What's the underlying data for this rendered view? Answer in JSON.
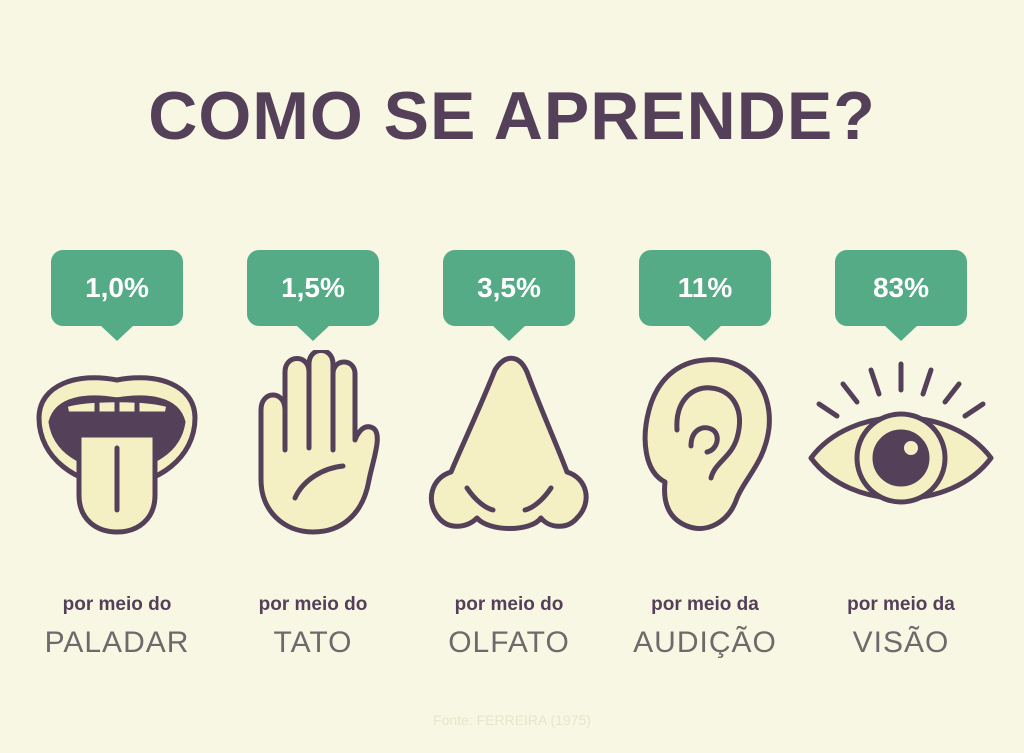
{
  "title": "COMO SE APRENDE?",
  "colors": {
    "background": "#f8f7e4",
    "title": "#55405a",
    "bubble": "#55ab86",
    "icon_fill": "#f5efc4",
    "icon_stroke": "#55405a"
  },
  "senses": [
    {
      "percent": "1,0%",
      "prefix": "por meio do",
      "name": "PALADAR",
      "icon": "mouth-icon"
    },
    {
      "percent": "1,5%",
      "prefix": "por meio do",
      "name": "TATO",
      "icon": "hand-icon"
    },
    {
      "percent": "3,5%",
      "prefix": "por meio do",
      "name": "OLFATO",
      "icon": "nose-icon"
    },
    {
      "percent": "11%",
      "prefix": "por meio da",
      "name": "AUDIÇÃO",
      "icon": "ear-icon"
    },
    {
      "percent": "83%",
      "prefix": "por meio da",
      "name": "VISÃO",
      "icon": "eye-icon"
    }
  ],
  "source": "Fonte: FERREIRA (1975)"
}
